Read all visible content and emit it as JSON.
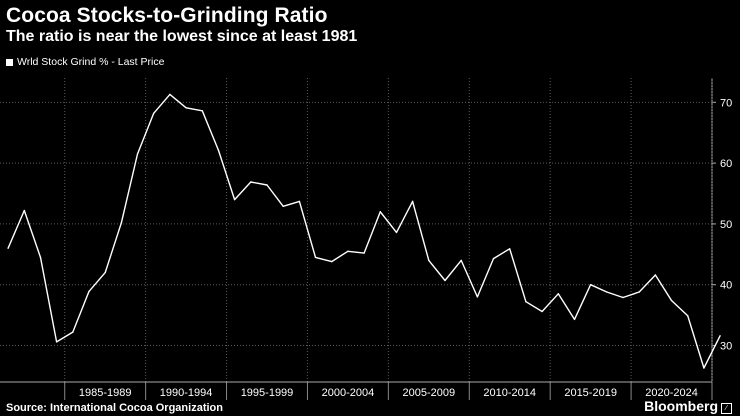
{
  "header": {
    "title": "Cocoa Stocks-to-Grinding Ratio",
    "subtitle": "The ratio is near the lowest since at least 1981"
  },
  "footer": {
    "source": "Source: International Cocoa Organization",
    "brand": "Bloomberg"
  },
  "chart_data": {
    "type": "line",
    "legend": [
      "Wrld Stock Grind % - Last Price"
    ],
    "legend_position": "top-left",
    "grid": true,
    "x_period_labels": [
      "1985-1989",
      "1990-1994",
      "1995-1999",
      "2000-2004",
      "2005-2009",
      "2010-2014",
      "2015-2019",
      "2020-2024"
    ],
    "y_ticks": [
      30,
      40,
      50,
      60,
      70
    ],
    "ylim": [
      24,
      74
    ],
    "xlim": [
      1980.5,
      2024.5
    ],
    "series": [
      {
        "name": "Wrld Stock Grind % - Last Price",
        "color": "#ffffff",
        "x": [
          1981,
          1982,
          1983,
          1984,
          1985,
          1986,
          1987,
          1988,
          1989,
          1990,
          1991,
          1992,
          1993,
          1994,
          1995,
          1996,
          1997,
          1998,
          1999,
          2000,
          2001,
          2002,
          2003,
          2004,
          2005,
          2006,
          2007,
          2008,
          2009,
          2010,
          2011,
          2012,
          2013,
          2014,
          2015,
          2016,
          2017,
          2018,
          2019,
          2020,
          2021,
          2022,
          2023,
          2024
        ],
        "values": [
          46.0,
          52.2,
          44.5,
          30.6,
          32.2,
          38.9,
          42.0,
          50.2,
          61.5,
          68.2,
          71.3,
          69.1,
          68.6,
          62.1,
          54.0,
          56.9,
          56.4,
          52.9,
          53.7,
          44.5,
          43.8,
          45.5,
          45.2,
          52.0,
          48.6,
          53.7,
          44.0,
          40.7,
          44.0,
          38.0,
          44.3,
          45.9,
          37.2,
          35.6,
          38.5,
          34.3,
          40.0,
          38.8,
          37.9,
          38.8,
          41.6,
          37.4,
          34.9,
          26.3
        ]
      },
      {
        "name": "",
        "color": "#ffffff",
        "x": [
          2024,
          2025
        ],
        "values": [
          26.3,
          31.6
        ]
      }
    ]
  }
}
